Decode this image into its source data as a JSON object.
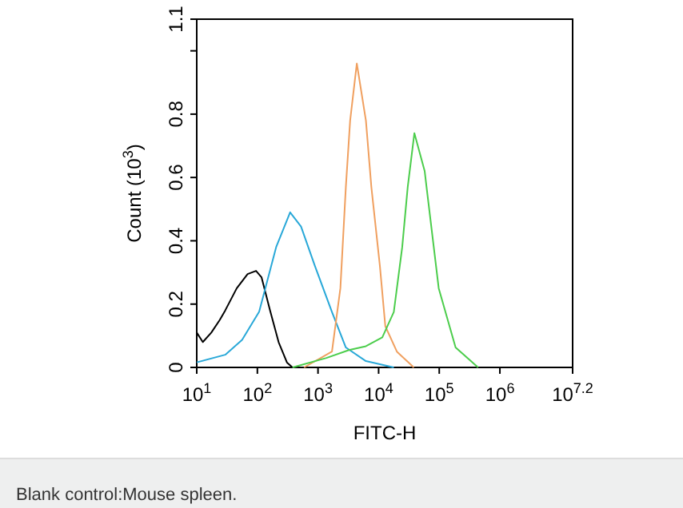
{
  "chart_data": {
    "type": "line",
    "xlabel": "FITC-H",
    "ylabel": "Count (10$^{3}$)",
    "log": "x",
    "xlim": [
      10,
      15848932
    ],
    "ylim": [
      0,
      1.1
    ],
    "xticks": [
      {
        "value": 10,
        "label": "10$^{1}$"
      },
      {
        "value": 100,
        "label": "10$^{2}$"
      },
      {
        "value": 1000,
        "label": "10$^{3}$"
      },
      {
        "value": 10000,
        "label": "10$^{4}$"
      },
      {
        "value": 100000,
        "label": "10$^{5}$"
      },
      {
        "value": 1000000,
        "label": "10$^{6}$"
      },
      {
        "value": 15848932,
        "label": "10$^{7.2}$"
      }
    ],
    "yticks": [
      0,
      0.2,
      0.4,
      0.6,
      0.8,
      {
        "value": 1,
        "label": null
      },
      1.1
    ],
    "grid": false,
    "marker": "none",
    "line_style": "solid",
    "annotations": [
      "Blank control:Mouse spleen."
    ],
    "series": [
      {
        "color": "#000000",
        "x": [
          10,
          12.6,
          17.4,
          24,
          29.5,
          45.7,
          69,
          95,
          117,
          162,
          224,
          309,
          380
        ],
        "values": [
          0.11,
          0.08,
          0.11,
          0.15,
          0.18,
          0.25,
          0.295,
          0.305,
          0.285,
          0.18,
          0.08,
          0.015,
          0
        ]
      },
      {
        "color": "#29a8d8",
        "x": [
          10,
          29.5,
          56,
          107,
          204,
          347,
          525,
          891,
          1700,
          2880,
          6170,
          17800
        ],
        "values": [
          0.016,
          0.04,
          0.087,
          0.176,
          0.38,
          0.49,
          0.445,
          0.32,
          0.175,
          0.063,
          0.02,
          0
        ]
      },
      {
        "color": "#f0a060",
        "x": [
          590,
          1700,
          2340,
          2880,
          3390,
          4370,
          6170,
          7590,
          10500,
          12900,
          20000,
          38000
        ],
        "values": [
          0,
          0.05,
          0.25,
          0.57,
          0.78,
          0.96,
          0.78,
          0.57,
          0.32,
          0.13,
          0.05,
          0
        ]
      },
      {
        "color": "#4ccd4c",
        "x": [
          380,
          1380,
          3240,
          6170,
          11500,
          17800,
          24500,
          30200,
          38900,
          57500,
          61700,
          98000,
          186000,
          437000
        ],
        "values": [
          0,
          0.03,
          0.055,
          0.067,
          0.095,
          0.175,
          0.38,
          0.57,
          0.74,
          0.62,
          0.57,
          0.25,
          0.063,
          0
        ]
      }
    ]
  }
}
